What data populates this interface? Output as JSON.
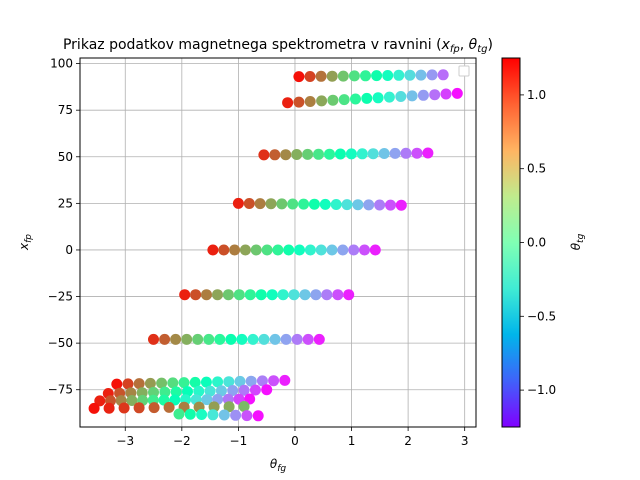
{
  "chart_data": {
    "type": "scatter",
    "title": "Prikaz podatkov magnetnega spektrometra v ravnini (x_fp, θ_tg)",
    "title_parts": {
      "prefix": "Prikaz podatkov magnetnega spektrometra v ravnini (",
      "x": "x",
      "x_sub": "fp",
      "sep": ", ",
      "theta": "θ",
      "theta_sub": "tg",
      "suffix": ")"
    },
    "xlabel": {
      "symbol": "θ",
      "sub": "fg"
    },
    "ylabel": {
      "symbol": "x",
      "sub": "fp"
    },
    "colorbar_label": {
      "symbol": "θ",
      "sub": "tg"
    },
    "xlim": [
      -3.8,
      3.2
    ],
    "ylim": [
      -95,
      103
    ],
    "xticks": [
      -3,
      -2,
      -1,
      0,
      1,
      2,
      3
    ],
    "xtick_labels": [
      "−3",
      "−2",
      "−1",
      "0",
      "1",
      "2",
      "3"
    ],
    "yticks": [
      -75,
      -50,
      -25,
      0,
      25,
      50,
      75,
      100
    ],
    "ytick_labels": [
      "−75",
      "−50",
      "−25",
      "0",
      "25",
      "50",
      "75",
      "100"
    ],
    "colorbar_range": [
      -1.25,
      1.25
    ],
    "colorbar_ticks": [
      -1.0,
      -0.5,
      0.0,
      0.5,
      1.0
    ],
    "colorbar_tick_labels": [
      "−1.0",
      "−0.5",
      "0.0",
      "0.5",
      "1.0"
    ],
    "colormap": "rainbow",
    "grid": true,
    "legend": "top-right (empty)",
    "bands": [
      {
        "x_start": 0.07,
        "x_end": 2.62,
        "y_start": 93,
        "y_end": 94,
        "n": 14,
        "c_start": 1.2,
        "c_end": -0.9
      },
      {
        "x_start": -0.13,
        "x_end": 2.87,
        "y_start": 79,
        "y_end": 84,
        "n": 16,
        "c_start": 1.15,
        "c_end": -1.2
      },
      {
        "x_start": -0.55,
        "x_end": 2.35,
        "y_start": 51,
        "y_end": 52,
        "n": 16,
        "c_start": 1.1,
        "c_end": -1.15
      },
      {
        "x_start": -1.0,
        "x_end": 1.88,
        "y_start": 25,
        "y_end": 24,
        "n": 16,
        "c_start": 1.15,
        "c_end": -1.15
      },
      {
        "x_start": -1.45,
        "x_end": 1.42,
        "y_start": 0,
        "y_end": 0,
        "n": 16,
        "c_start": 1.15,
        "c_end": -1.15
      },
      {
        "x_start": -1.95,
        "x_end": 0.95,
        "y_start": -24,
        "y_end": -24,
        "n": 16,
        "c_start": 1.15,
        "c_end": -1.15
      },
      {
        "x_start": -2.5,
        "x_end": 0.43,
        "y_start": -48,
        "y_end": -48,
        "n": 16,
        "c_start": 1.1,
        "c_end": -1.15
      },
      {
        "x_start": -3.15,
        "x_end": -0.18,
        "y_start": -72,
        "y_end": -70,
        "n": 16,
        "c_start": 1.2,
        "c_end": -1.15
      },
      {
        "x_start": -3.3,
        "x_end": -0.5,
        "y_start": -77,
        "y_end": -75,
        "n": 15,
        "c_start": 1.15,
        "c_end": -1.2
      },
      {
        "x_start": -3.45,
        "x_end": -0.8,
        "y_start": -81,
        "y_end": -80,
        "n": 15,
        "c_start": 1.15,
        "c_end": -1.2
      },
      {
        "x_start": -3.55,
        "x_end": -0.9,
        "y_start": -85,
        "y_end": -84,
        "n": 11,
        "c_start": 1.2,
        "c_end": 0.6
      },
      {
        "x_start": -2.05,
        "x_end": -0.65,
        "y_start": -88,
        "y_end": -89,
        "n": 8,
        "c_start": 0.3,
        "c_end": -1.2
      }
    ]
  }
}
